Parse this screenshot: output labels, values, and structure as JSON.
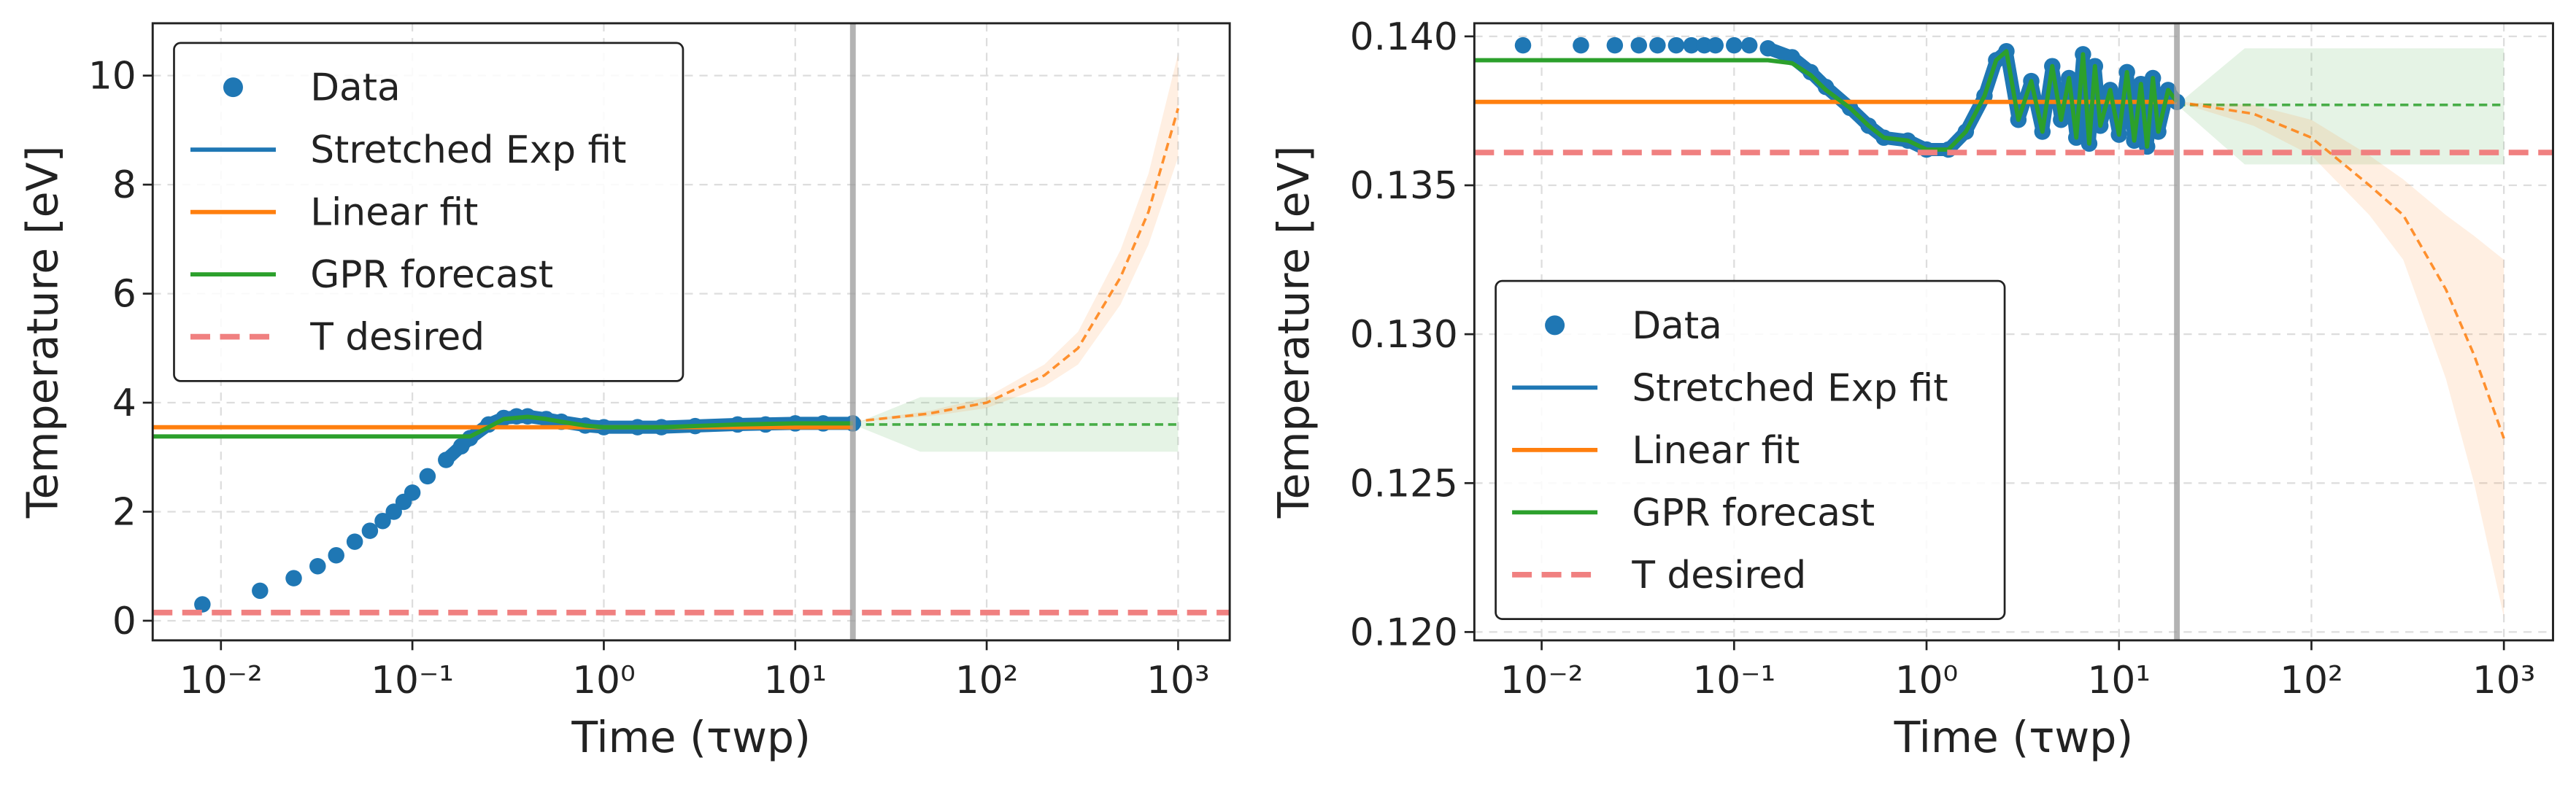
{
  "chart_data": [
    {
      "type": "line",
      "xlabel": "Time (τwp)",
      "ylabel": "Temperature [eV]",
      "xscale": "log",
      "grid": true,
      "legend": "upper left",
      "xlim": [
        0.0044,
        1860
      ],
      "ylim": [
        -0.36,
        10.96
      ],
      "xticks": [
        {
          "value": 0.01,
          "label": "10⁻²"
        },
        {
          "value": 0.1,
          "label": "10⁻¹"
        },
        {
          "value": 1,
          "label": "10⁰"
        },
        {
          "value": 10,
          "label": "10¹"
        },
        {
          "value": 100,
          "label": "10²"
        },
        {
          "value": 1000,
          "label": "10³"
        }
      ],
      "yticks": [
        0,
        2,
        4,
        6,
        8,
        10
      ],
      "vline": 20,
      "series": [
        {
          "name": "Data",
          "color": "#1f77b4",
          "style": "markers",
          "x": [
            0.008,
            0.016,
            0.024,
            0.032,
            0.04,
            0.05,
            0.06,
            0.07,
            0.08,
            0.09,
            0.1,
            0.12,
            0.15,
            0.18,
            0.2,
            0.25,
            0.3,
            0.35,
            0.4,
            0.5,
            0.6,
            0.8,
            1,
            1.5,
            2,
            3,
            5,
            7,
            10,
            14,
            20
          ],
          "values": [
            0.3,
            0.55,
            0.78,
            1.0,
            1.2,
            1.45,
            1.65,
            1.83,
            2.0,
            2.18,
            2.35,
            2.65,
            2.95,
            3.2,
            3.35,
            3.6,
            3.72,
            3.75,
            3.75,
            3.7,
            3.65,
            3.58,
            3.55,
            3.55,
            3.55,
            3.57,
            3.6,
            3.6,
            3.62,
            3.62,
            3.62
          ]
        },
        {
          "name": "Stretched Exp fit",
          "color": "#1f77b4",
          "style": "line",
          "x": [
            0.15,
            0.2,
            0.25,
            0.3,
            0.4,
            0.5,
            0.6,
            0.8,
            1,
            2,
            5,
            10,
            20
          ],
          "values": [
            2.95,
            3.35,
            3.6,
            3.72,
            3.75,
            3.7,
            3.65,
            3.58,
            3.55,
            3.55,
            3.6,
            3.62,
            3.62
          ]
        },
        {
          "name": "Linear fit",
          "color": "#ff7f0e",
          "style": "line",
          "x": [
            0.0044,
            20
          ],
          "values": [
            3.55,
            3.55
          ]
        },
        {
          "name": "GPR forecast",
          "color": "#2ca02c",
          "style": "line",
          "x": [
            0.0044,
            0.2,
            0.25,
            0.3,
            0.4,
            0.5,
            0.6,
            0.8,
            1,
            2,
            5,
            10,
            20
          ],
          "values": [
            3.38,
            3.38,
            3.55,
            3.7,
            3.74,
            3.7,
            3.65,
            3.58,
            3.55,
            3.55,
            3.6,
            3.62,
            3.62
          ]
        },
        {
          "name": "T desired",
          "color": "#f08080",
          "style": "dashed",
          "x": [
            0.0044,
            1860
          ],
          "values": [
            0.15,
            0.15
          ]
        }
      ],
      "forecasts": [
        {
          "color": "#2ca02c",
          "x": [
            20,
            45,
            100,
            300,
            1000
          ],
          "values": [
            3.6,
            3.6,
            3.6,
            3.6,
            3.6
          ],
          "lower": [
            3.6,
            3.1,
            3.1,
            3.1,
            3.1
          ],
          "upper": [
            3.6,
            4.1,
            4.1,
            4.1,
            4.1
          ]
        },
        {
          "color": "#ff7f0e",
          "x": [
            20,
            50,
            100,
            200,
            300,
            500,
            700,
            1000
          ],
          "values": [
            3.65,
            3.8,
            4.0,
            4.5,
            5.0,
            6.3,
            7.5,
            9.4
          ],
          "lower": [
            3.65,
            3.75,
            3.9,
            4.3,
            4.7,
            5.8,
            6.9,
            8.5
          ],
          "upper": [
            3.65,
            3.85,
            4.1,
            4.7,
            5.3,
            6.8,
            8.2,
            10.4
          ]
        }
      ]
    },
    {
      "type": "line",
      "xlabel": "Time (τwp)",
      "ylabel": "Temperature [eV]",
      "xscale": "log",
      "grid": true,
      "legend": "lower left",
      "xlim": [
        0.00447,
        1800
      ],
      "ylim": [
        0.11972,
        0.14044
      ],
      "xticks": [
        {
          "value": 0.01,
          "label": "10⁻²"
        },
        {
          "value": 0.1,
          "label": "10⁻¹"
        },
        {
          "value": 1,
          "label": "10⁰"
        },
        {
          "value": 10,
          "label": "10¹"
        },
        {
          "value": 100,
          "label": "10²"
        },
        {
          "value": 1000,
          "label": "10³"
        }
      ],
      "yticks": [
        {
          "value": 0.12,
          "label": "0.120"
        },
        {
          "value": 0.125,
          "label": "0.125"
        },
        {
          "value": 0.13,
          "label": "0.130"
        },
        {
          "value": 0.135,
          "label": "0.135"
        },
        {
          "value": 0.14,
          "label": "0.140"
        }
      ],
      "vline": 20,
      "series": [
        {
          "name": "Data",
          "color": "#1f77b4",
          "style": "markers",
          "x": [
            0.008,
            0.016,
            0.024,
            0.032,
            0.04,
            0.05,
            0.06,
            0.07,
            0.08,
            0.1,
            0.12,
            0.15,
            0.2,
            0.25,
            0.3,
            0.4,
            0.5,
            0.6,
            0.8,
            1,
            1.3,
            1.6,
            2,
            2.3,
            2.6,
            3,
            3.5,
            4,
            4.5,
            5,
            5.5,
            6,
            6.5,
            7,
            7.5,
            8,
            9,
            10,
            11,
            12,
            13,
            14,
            15,
            16,
            18,
            20
          ],
          "values": [
            0.1397,
            0.1397,
            0.1397,
            0.1397,
            0.1397,
            0.1397,
            0.1397,
            0.1397,
            0.1397,
            0.1397,
            0.1397,
            0.1396,
            0.1393,
            0.1388,
            0.1383,
            0.1376,
            0.137,
            0.1366,
            0.1365,
            0.1362,
            0.1362,
            0.1368,
            0.138,
            0.1392,
            0.1395,
            0.1372,
            0.1385,
            0.1368,
            0.139,
            0.1372,
            0.1386,
            0.1366,
            0.1394,
            0.1364,
            0.139,
            0.137,
            0.1382,
            0.1367,
            0.1388,
            0.1365,
            0.1384,
            0.1363,
            0.1386,
            0.1368,
            0.1382,
            0.1378
          ]
        },
        {
          "name": "Stretched Exp fit",
          "color": "#1f77b4",
          "style": "line",
          "x": [
            0.15,
            0.2,
            0.25,
            0.3,
            0.4,
            0.5,
            0.6,
            0.8,
            1,
            1.3,
            1.6,
            2,
            2.3,
            2.6,
            3,
            3.5,
            4,
            4.5,
            5,
            5.5,
            6,
            6.5,
            7,
            7.5,
            8,
            9,
            10,
            11,
            12,
            13,
            14,
            15,
            16,
            18,
            20
          ],
          "values": [
            0.1396,
            0.1393,
            0.1388,
            0.1383,
            0.1376,
            0.137,
            0.1366,
            0.1365,
            0.1362,
            0.1362,
            0.1368,
            0.138,
            0.1392,
            0.1395,
            0.1372,
            0.1385,
            0.1368,
            0.139,
            0.1372,
            0.1386,
            0.1366,
            0.1394,
            0.1364,
            0.139,
            0.137,
            0.1382,
            0.1367,
            0.1388,
            0.1365,
            0.1384,
            0.1363,
            0.1386,
            0.1368,
            0.1382,
            0.1378
          ]
        },
        {
          "name": "Linear fit",
          "color": "#ff7f0e",
          "style": "line",
          "x": [
            0.00447,
            20
          ],
          "values": [
            0.1378,
            0.1378
          ]
        },
        {
          "name": "GPR forecast",
          "color": "#2ca02c",
          "style": "line",
          "x": [
            0.00447,
            0.15,
            0.2,
            0.25,
            0.3,
            0.4,
            0.5,
            0.6,
            0.8,
            1,
            1.3,
            1.6,
            2,
            2.3,
            2.6,
            3,
            3.5,
            4,
            4.5,
            5,
            5.5,
            6,
            6.5,
            7,
            7.5,
            8,
            9,
            10,
            11,
            12,
            13,
            14,
            15,
            16,
            18,
            20
          ],
          "values": [
            0.1392,
            0.1392,
            0.1391,
            0.1387,
            0.1382,
            0.1376,
            0.137,
            0.1366,
            0.1365,
            0.1362,
            0.1362,
            0.1368,
            0.138,
            0.1392,
            0.1395,
            0.1372,
            0.1385,
            0.1368,
            0.139,
            0.1372,
            0.1386,
            0.1366,
            0.1394,
            0.1364,
            0.139,
            0.137,
            0.1382,
            0.1367,
            0.1388,
            0.1365,
            0.1384,
            0.1363,
            0.1386,
            0.1368,
            0.1382,
            0.1378
          ]
        },
        {
          "name": "T desired",
          "color": "#f08080",
          "style": "dashed",
          "x": [
            0.00447,
            1800
          ],
          "values": [
            0.1361,
            0.1361
          ]
        }
      ],
      "forecasts": [
        {
          "color": "#2ca02c",
          "x": [
            20,
            45,
            100,
            300,
            1000
          ],
          "values": [
            0.1377,
            0.1377,
            0.1377,
            0.1377,
            0.1377
          ],
          "lower": [
            0.1377,
            0.1357,
            0.1357,
            0.1357,
            0.1357
          ],
          "upper": [
            0.1377,
            0.1396,
            0.1396,
            0.1396,
            0.1396
          ]
        },
        {
          "color": "#ff7f0e",
          "x": [
            20,
            50,
            100,
            200,
            300,
            500,
            700,
            1000
          ],
          "values": [
            0.1378,
            0.1374,
            0.1366,
            0.135,
            0.134,
            0.1315,
            0.1293,
            0.1265
          ],
          "lower": [
            0.1378,
            0.137,
            0.136,
            0.134,
            0.1325,
            0.1285,
            0.125,
            0.1205
          ],
          "upper": [
            0.1378,
            0.1377,
            0.1372,
            0.136,
            0.1352,
            0.134,
            0.1333,
            0.1325
          ]
        }
      ]
    }
  ]
}
